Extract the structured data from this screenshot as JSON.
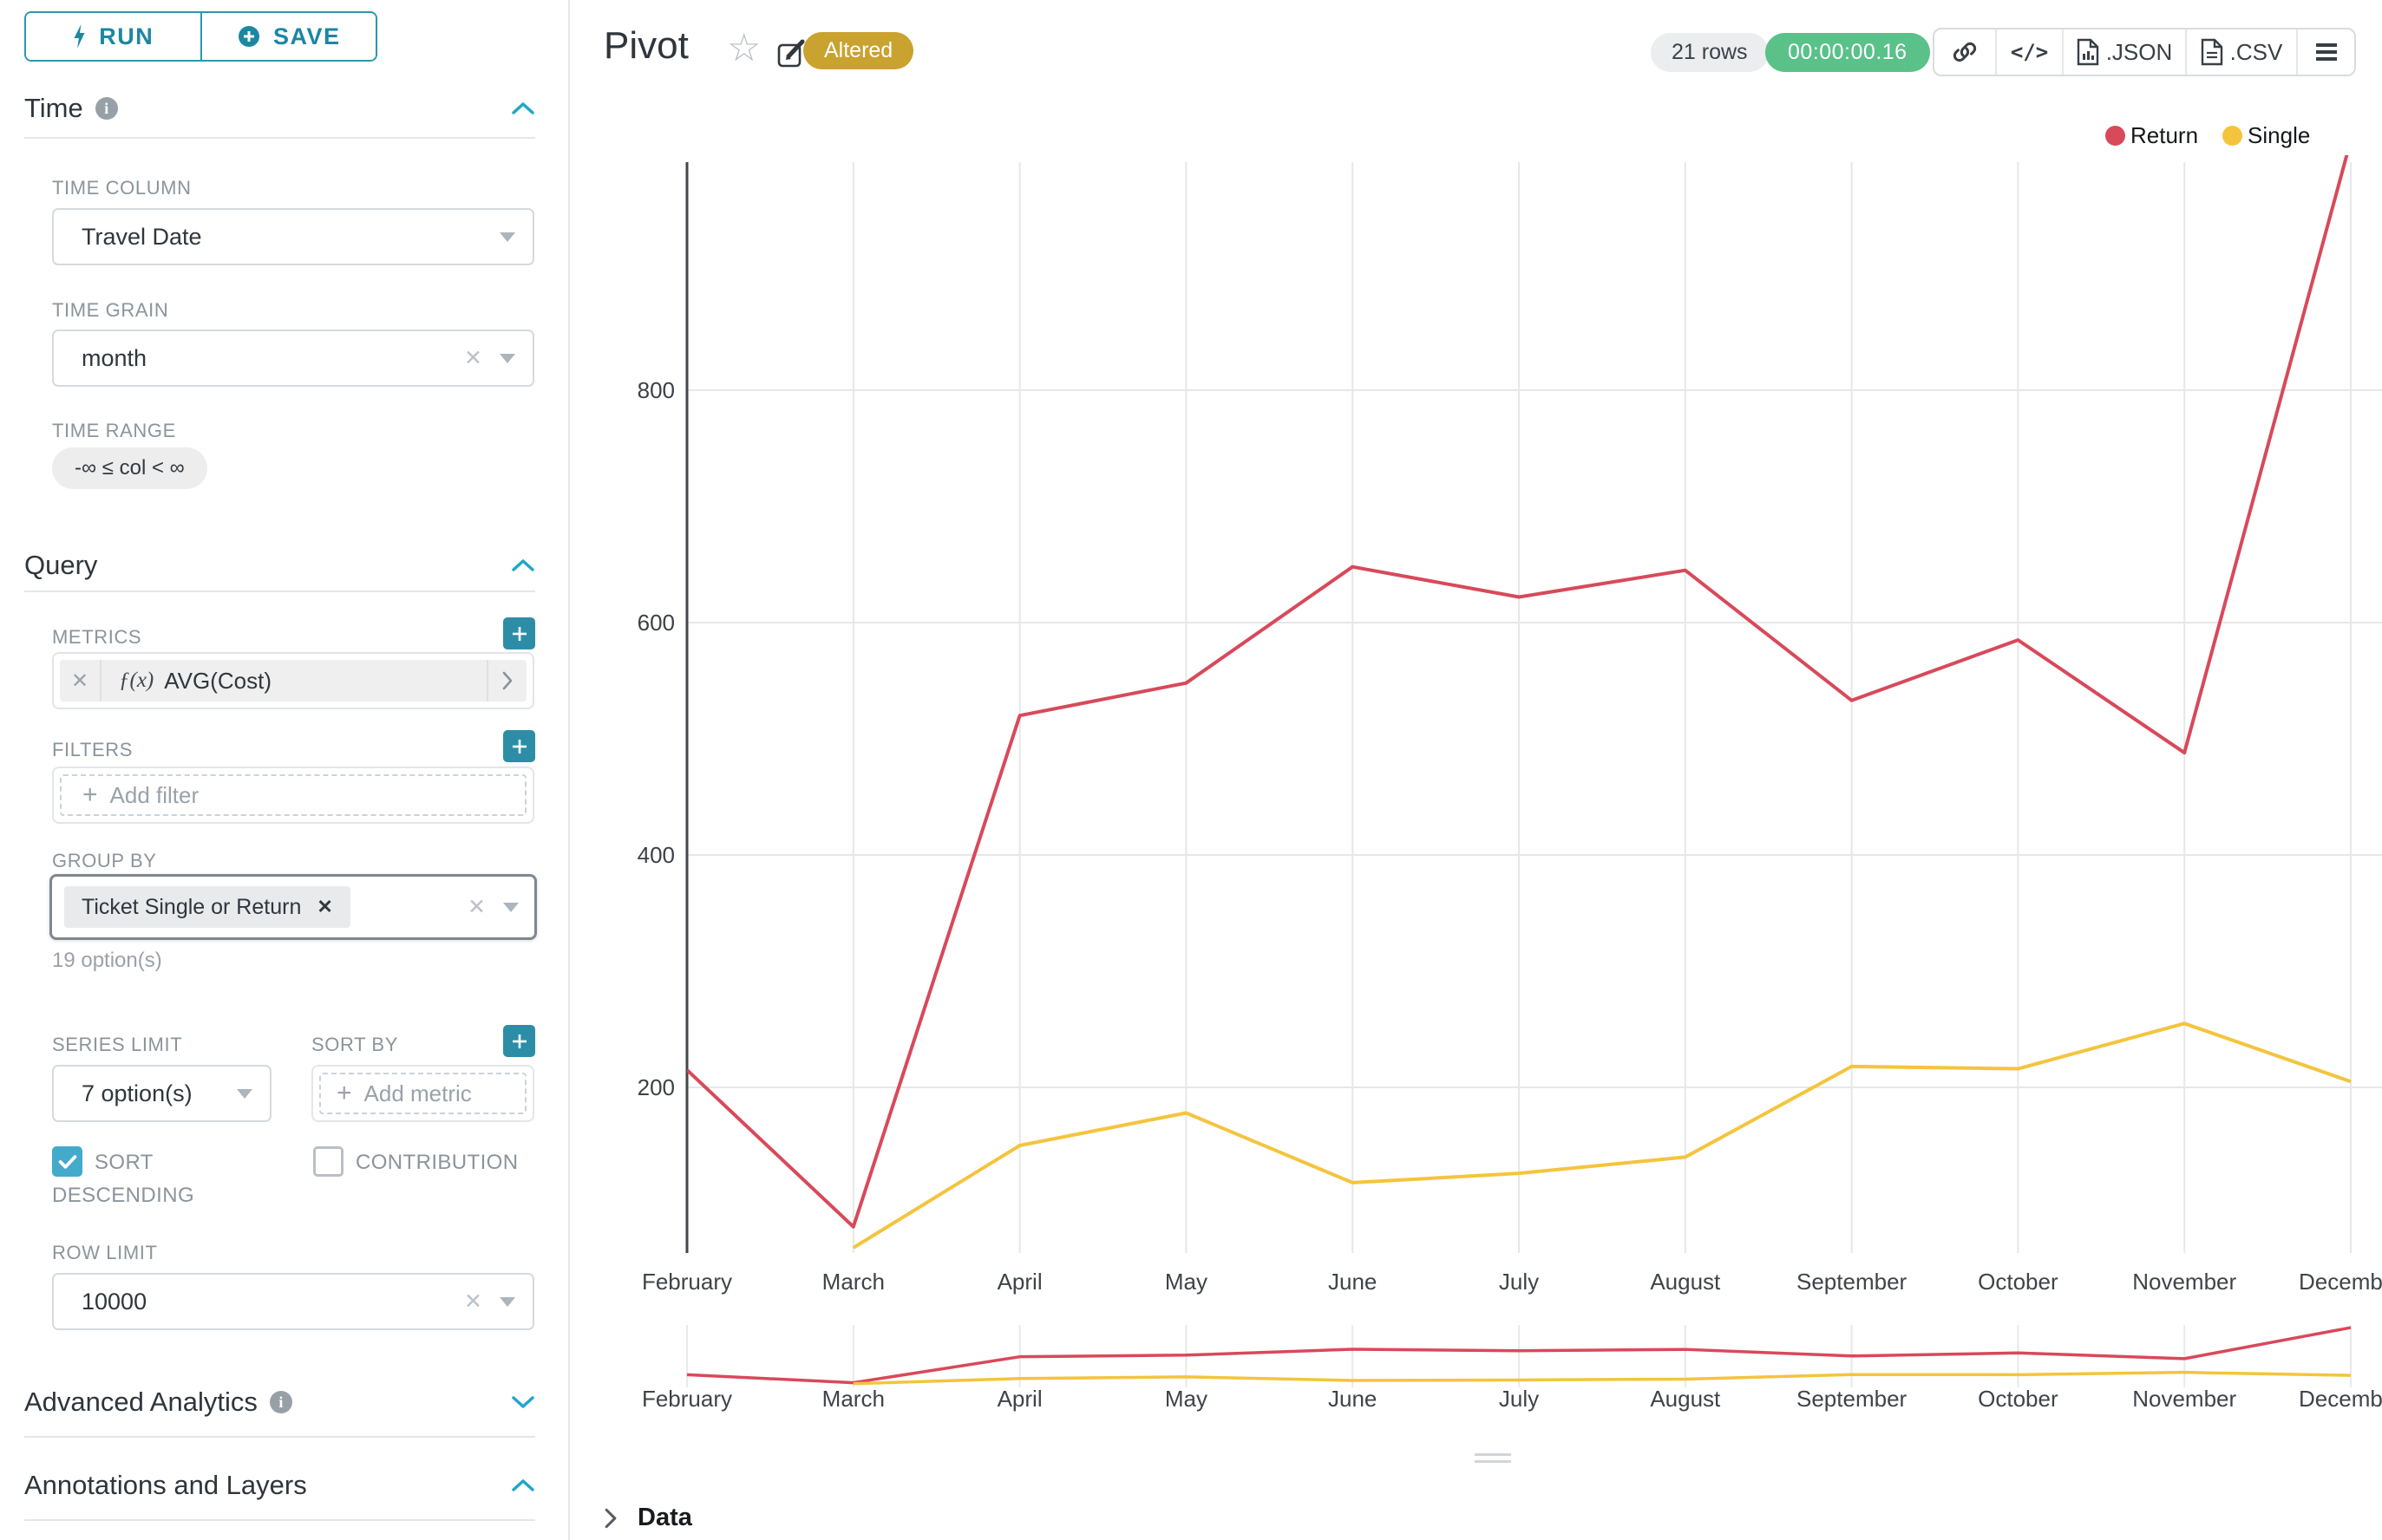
{
  "colors": {
    "accent_teal": "#1a87a3",
    "accent_border": "#2b96b1",
    "plus_button": "#2d8da7",
    "checkbox_checked": "#43aacb",
    "badge_gold": "#c9a22f",
    "timer_green": "#5ac189",
    "return_red": "#d8495a",
    "single_yellow": "#f4c43d"
  },
  "sidebar": {
    "run_label": "RUN",
    "save_label": "SAVE",
    "time": {
      "title": "Time",
      "time_column_label": "TIME COLUMN",
      "time_column_value": "Travel Date",
      "time_grain_label": "TIME GRAIN",
      "time_grain_value": "month",
      "time_range_label": "TIME RANGE",
      "time_range_value": "-∞ ≤ col < ∞"
    },
    "query": {
      "title": "Query",
      "metrics_label": "METRICS",
      "metric_fx": "ƒ(x)",
      "metric_value": "AVG(Cost)",
      "filters_label": "FILTERS",
      "add_filter_placeholder": "Add filter",
      "group_by_label": "GROUP BY",
      "group_by_chips": [
        "Ticket Single or Return"
      ],
      "group_by_hint": "19 option(s)",
      "series_limit_label": "SERIES LIMIT",
      "series_limit_value": "7 option(s)",
      "sort_by_label": "SORT BY",
      "add_metric_placeholder": "Add metric",
      "sort_descending_label": "SORT DESCENDING",
      "sort_descending_checked": true,
      "contribution_label": "CONTRIBUTION",
      "contribution_checked": false,
      "row_limit_label": "ROW LIMIT",
      "row_limit_value": "10000"
    },
    "advanced_analytics_title": "Advanced Analytics",
    "annotations_title": "Annotations and Layers"
  },
  "header": {
    "title": "Pivot",
    "badge": "Altered",
    "row_count": "21 rows",
    "timer": "00:00:00.16",
    "code_label": "</>",
    "json_label": ".JSON",
    "csv_label": ".CSV"
  },
  "footer": {
    "data_label": "Data"
  },
  "chart_data": {
    "type": "line",
    "title": "",
    "xlabel": "",
    "ylabel": "",
    "categories": [
      "February",
      "March",
      "April",
      "May",
      "June",
      "July",
      "August",
      "September",
      "October",
      "November",
      "December"
    ],
    "series": [
      {
        "name": "Return",
        "color": "#d8495a",
        "values": [
          215,
          80,
          520,
          548,
          648,
          622,
          645,
          533,
          585,
          488,
          1015
        ]
      },
      {
        "name": "Single",
        "color": "#f4c43d",
        "values": [
          null,
          62,
          150,
          178,
          118,
          126,
          140,
          218,
          216,
          255,
          205
        ]
      }
    ],
    "yticks": [
      200,
      400,
      600,
      800
    ],
    "ylim": [
      57,
      996
    ],
    "grid": true,
    "legend_position": "top-right",
    "preview_strip": true
  }
}
